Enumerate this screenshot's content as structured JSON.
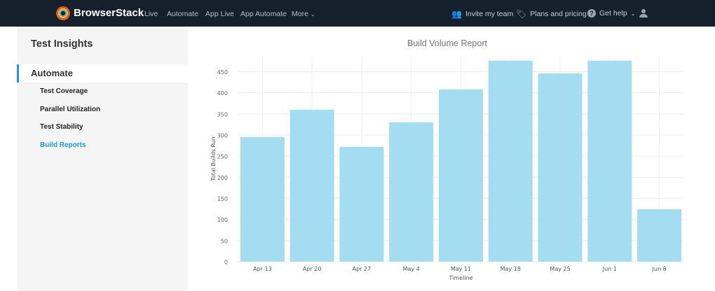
{
  "header": {
    "brand": "BrowserStack",
    "nav": [
      "Live",
      "Automate",
      "App Live",
      "App Automate",
      "More"
    ],
    "right": {
      "invite": "Invite my team",
      "plans": "Plans and pricing",
      "help": "Get help"
    }
  },
  "sidebar": {
    "title": "Test Insights",
    "section": "Automate",
    "items": [
      {
        "label": "Test Coverage",
        "active": false
      },
      {
        "label": "Parallel Utilization",
        "active": false
      },
      {
        "label": "Test Stability",
        "active": false
      },
      {
        "label": "Build Reports",
        "active": true
      }
    ]
  },
  "colors": {
    "bar": "#a4dcf2",
    "accent": "#1c9ae0",
    "topbar": "#16202c"
  },
  "chart_data": {
    "type": "bar",
    "title": "Build Volume Report",
    "xlabel": "Timeline",
    "ylabel": "Total Builds Run",
    "categories": [
      "Apr 13",
      "Apr 20",
      "Apr 27",
      "May 4",
      "May 11",
      "May 18",
      "May 25",
      "Jun 1",
      "Jun 8"
    ],
    "values": [
      295,
      360,
      272,
      330,
      408,
      476,
      446,
      476,
      124
    ],
    "ylim": [
      0,
      480
    ],
    "yticks": [
      0,
      50,
      100,
      150,
      200,
      250,
      300,
      350,
      400,
      450
    ],
    "grid": true,
    "legend": "none"
  }
}
